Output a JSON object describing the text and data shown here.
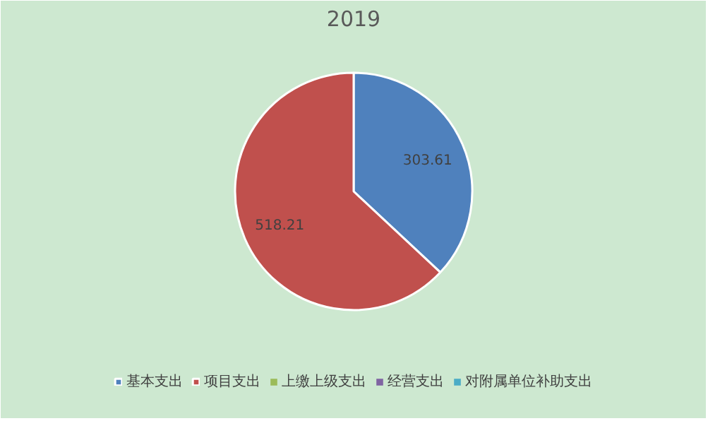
{
  "chart_data": {
    "type": "pie",
    "title": "2019",
    "categories": [
      "基本支出",
      "项目支出",
      "上缴上级支出",
      "经营支出",
      "对附属单位补助支出"
    ],
    "values": [
      303.61,
      518.21,
      0,
      0,
      0
    ],
    "colors": [
      "#4f81bd",
      "#c0504d",
      "#9bbb59",
      "#8064a2",
      "#4bacc6"
    ],
    "value_labels": [
      "303.61",
      "518.21",
      null,
      null,
      null
    ],
    "legend": "bottom"
  }
}
